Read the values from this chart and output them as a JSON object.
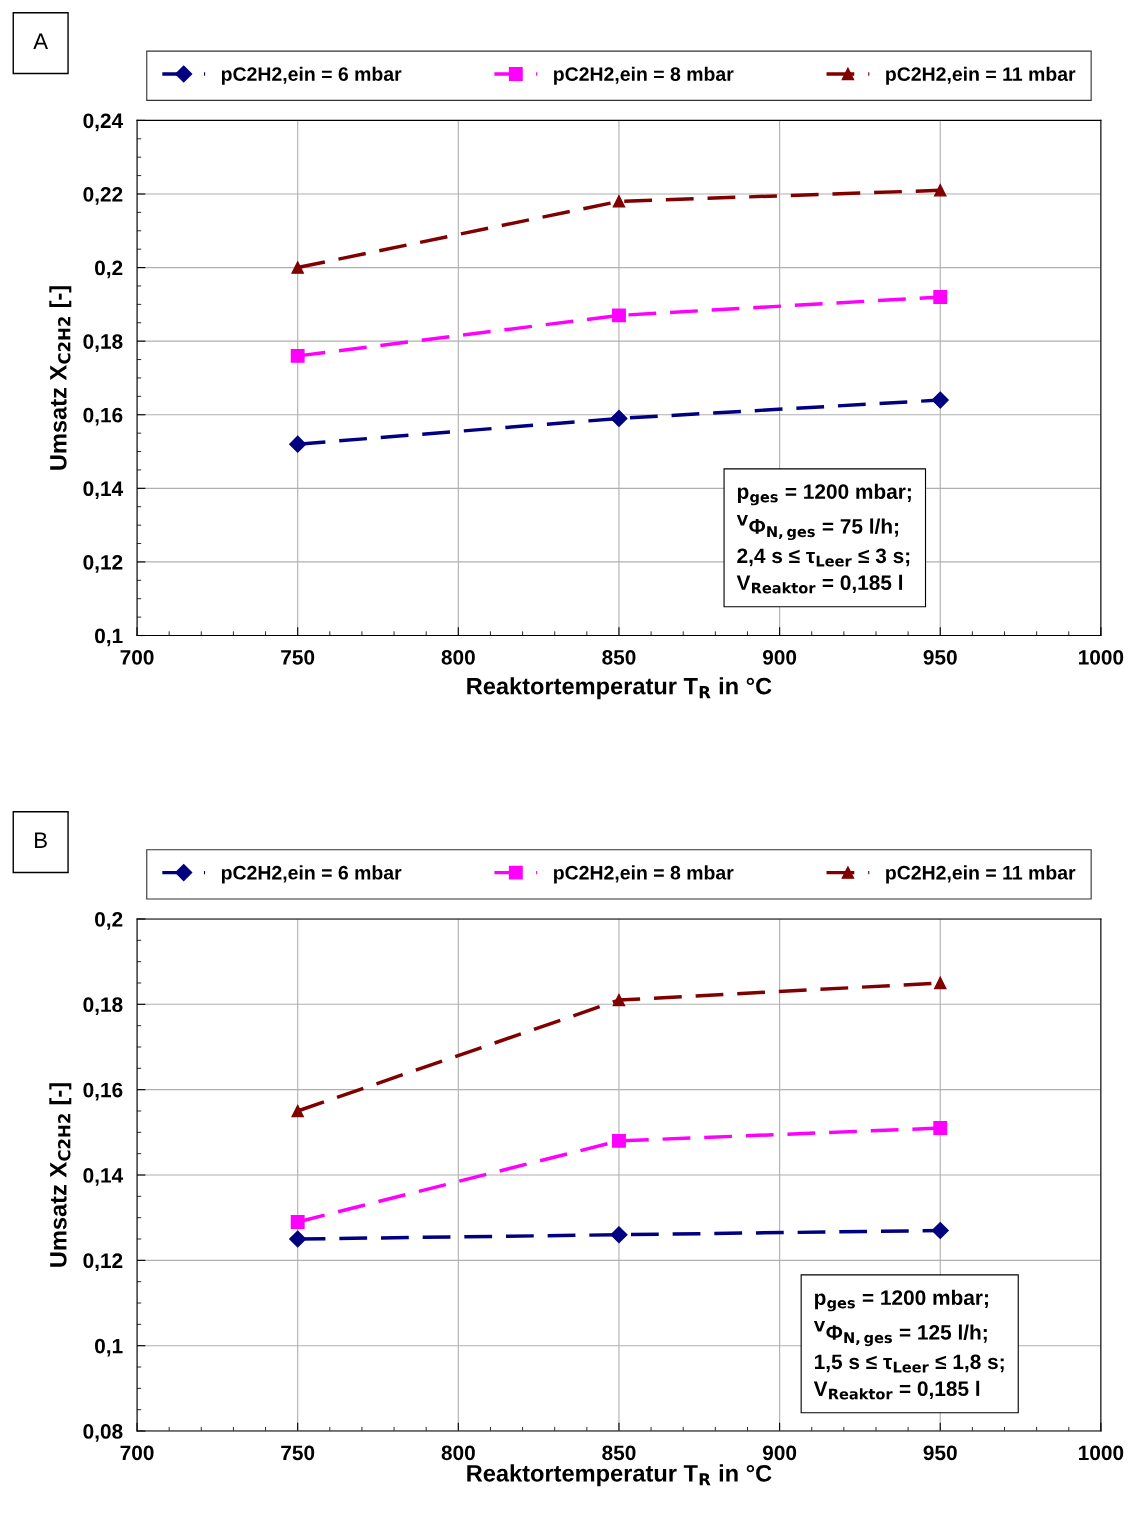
{
  "chart_data": [
    {
      "type": "line",
      "xlabel": "Reaktortemperatur T$_{R}$ in °C",
      "ylabel": "Umsatz X$_{C2H2}$ [-]",
      "x": [
        750,
        850,
        950
      ],
      "series": [
        {
          "name": "pC2H2,ein = 6 mbar",
          "color": "#000080",
          "marker": "diamond",
          "values": [
            0.152,
            0.159,
            0.164
          ]
        },
        {
          "name": "pC2H2,ein = 8 mbar",
          "color": "#ff00ff",
          "marker": "square",
          "values": [
            0.176,
            0.187,
            0.192
          ]
        },
        {
          "name": "pC2H2,ein = 11 mbar",
          "color": "#800000",
          "marker": "triangle",
          "values": [
            0.2,
            0.218,
            0.221
          ]
        }
      ],
      "line_style": "dashed",
      "grid": true,
      "legend": "top",
      "xlim": [
        700,
        1000
      ],
      "xticks": [
        700,
        750,
        800,
        850,
        900,
        950,
        1000
      ],
      "ylim": [
        0.1,
        0.24
      ],
      "yticks": [
        {
          "value": 0.1,
          "label": "0,1"
        },
        {
          "value": 0.12,
          "label": "0,12"
        },
        {
          "value": 0.14,
          "label": "0,14"
        },
        {
          "value": 0.16,
          "label": "0,16"
        },
        {
          "value": 0.18,
          "label": "0,18"
        },
        {
          "value": 0.2,
          "label": "0,2"
        },
        {
          "value": 0.22,
          "label": "0,22"
        },
        {
          "value": 0.24,
          "label": "0,24"
        }
      ],
      "annotations": [
        "A",
        "p$_{ges}$ = 1200 mbar;",
        "$^{V}$Φ$_{N,ges}$ = 75 l/h;",
        "2,4 s ≤ τ$_{Leer}$ ≤ 3 s;",
        "V$_{Reaktor}$ = 0,185 l"
      ]
    },
    {
      "type": "line",
      "xlabel": "Reaktortemperatur T$_{R}$ in °C",
      "ylabel": "Umsatz X$_{C2H2}$ [-]",
      "x": [
        750,
        850,
        950
      ],
      "series": [
        {
          "name": "pC2H2,ein = 6 mbar",
          "color": "#000080",
          "marker": "diamond",
          "values": [
            0.125,
            0.126,
            0.127
          ]
        },
        {
          "name": "pC2H2,ein = 8 mbar",
          "color": "#ff00ff",
          "marker": "square",
          "values": [
            0.129,
            0.148,
            0.151
          ]
        },
        {
          "name": "pC2H2,ein = 11 mbar",
          "color": "#800000",
          "marker": "triangle",
          "values": [
            0.155,
            0.181,
            0.185
          ]
        }
      ],
      "line_style": "dashed",
      "grid": true,
      "legend": "top",
      "xlim": [
        700,
        1000
      ],
      "xticks": [
        700,
        750,
        800,
        850,
        900,
        950,
        1000
      ],
      "ylim": [
        0.08,
        0.2
      ],
      "yticks": [
        {
          "value": 0.08,
          "label": "0,08"
        },
        {
          "value": 0.1,
          "label": "0,1"
        },
        {
          "value": 0.12,
          "label": "0,12"
        },
        {
          "value": 0.14,
          "label": "0,14"
        },
        {
          "value": 0.16,
          "label": "0,16"
        },
        {
          "value": 0.18,
          "label": "0,18"
        },
        {
          "value": 0.2,
          "label": "0,2"
        }
      ],
      "annotations": [
        "B",
        "p$_{ges}$ = 1200 mbar;",
        "$^{V}$Φ$_{N,ges}$ = 125 l/h;",
        "1,5 s ≤ τ$_{Leer}$ ≤ 1,8 s;",
        "V$_{Reaktor}$ = 0,185 l"
      ]
    }
  ]
}
